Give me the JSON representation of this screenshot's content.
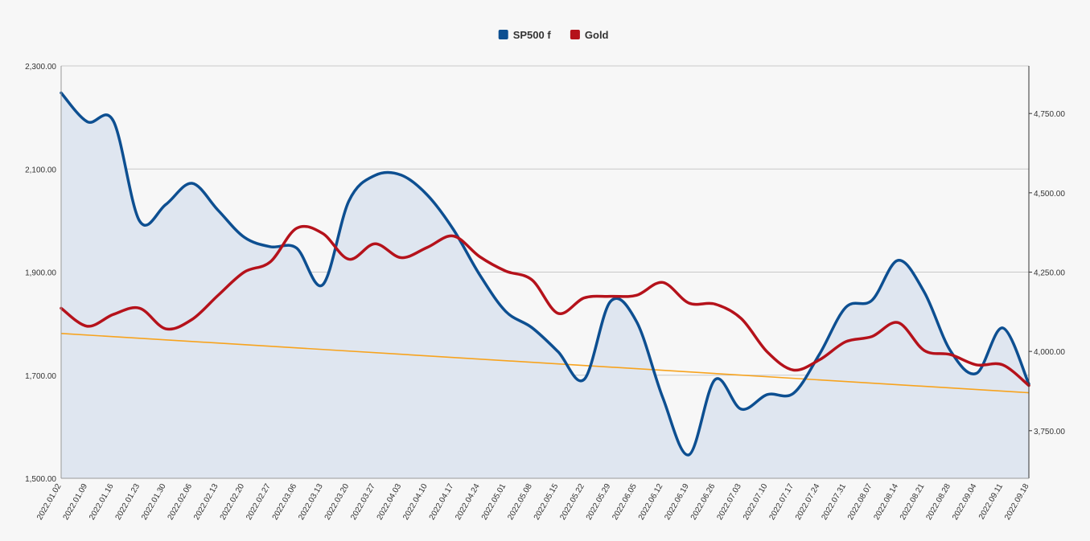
{
  "chart_data": {
    "type": "line",
    "title": "",
    "xlabel": "",
    "ylabel": "",
    "categories": [
      "2022.01.02",
      "2022.01.09",
      "2022.01.16",
      "2022.01.23",
      "2022.01.30",
      "2022.02.06",
      "2022.02.13",
      "2022.02.20",
      "2022.02.27",
      "2022.03.06",
      "2022.03.13",
      "2022.03.20",
      "2022.03.27",
      "2022.04.03",
      "2022.04.10",
      "2022.04.17",
      "2022.04.24",
      "2022.05.01",
      "2022.05.08",
      "2022.05.15",
      "2022.05.22",
      "2022.05.29",
      "2022.06.05",
      "2022.06.12",
      "2022.06.19",
      "2022.06.26",
      "2022.07.03",
      "2022.07.10",
      "2022.07.17",
      "2022.07.24",
      "2022.07.31",
      "2022.08.07",
      "2022.08.14",
      "2022.08.21",
      "2022.08.28",
      "2022.09.04",
      "2022.09.11",
      "2022.09.18"
    ],
    "series": [
      {
        "name": "SP500 f",
        "axis": "right",
        "color": "#0d4f91",
        "area": true,
        "values": [
          4815,
          4724,
          4726,
          4411,
          4463,
          4530,
          4445,
          4360,
          4330,
          4326,
          4210,
          4474,
          4555,
          4556,
          4493,
          4384,
          4242,
          4126,
          4075,
          3999,
          3912,
          4157,
          4094,
          3855,
          3674,
          3911,
          3818,
          3864,
          3868,
          3992,
          4139,
          4161,
          4287,
          4187,
          4002,
          3931,
          4074,
          3897
        ]
      },
      {
        "name": "Gold",
        "axis": "left",
        "color": "#b5121b",
        "area": false,
        "values": [
          1830,
          1795,
          1818,
          1830,
          1790,
          1808,
          1855,
          1900,
          1920,
          1985,
          1975,
          1925,
          1955,
          1928,
          1948,
          1970,
          1930,
          1902,
          1885,
          1820,
          1850,
          1853,
          1855,
          1880,
          1840,
          1838,
          1810,
          1745,
          1710,
          1730,
          1765,
          1775,
          1802,
          1748,
          1740,
          1720,
          1720,
          1680
        ]
      }
    ],
    "trendline": {
      "of": "Gold",
      "color": "#f7a31e",
      "start": 1781,
      "end": 1666
    },
    "left_axis": {
      "ylim": [
        1500,
        2300
      ],
      "ticks": [
        "1,500.00",
        "1,700.00",
        "1,900.00",
        "2,100.00",
        "2,300.00"
      ]
    },
    "right_axis": {
      "ylim": [
        3600,
        4900
      ],
      "ticks": [
        "3,750.00",
        "4,000.00",
        "4,250.00",
        "4,500.00",
        "4,750.00"
      ]
    },
    "grid": true,
    "legend_position": "top-center"
  }
}
